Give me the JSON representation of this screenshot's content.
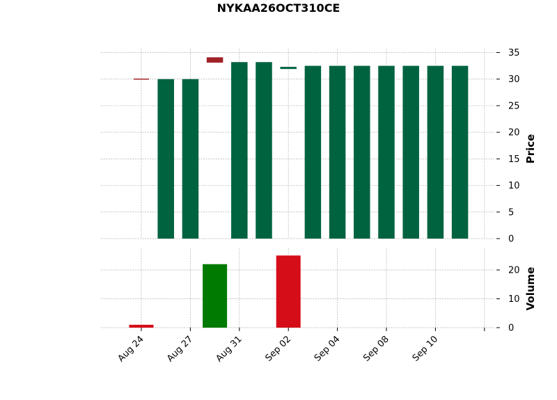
{
  "chart_data": {
    "type": "candlestick",
    "title": "NYKAA26OCT310CE",
    "x_tick_labels": [
      "Aug 24",
      "Aug 27",
      "Aug 31",
      "Sep 02",
      "Sep 04",
      "Sep 08",
      "Sep 10"
    ],
    "price_panel": {
      "ylabel": "Price",
      "ylim": [
        0,
        35
      ],
      "yticks": [
        0,
        5,
        10,
        15,
        20,
        25,
        30,
        35
      ],
      "grid": true,
      "candles": [
        {
          "open": 30,
          "close": 30,
          "color": "down"
        },
        {
          "open": 0,
          "close": 30,
          "color": "up"
        },
        {
          "open": 0,
          "close": 30,
          "color": "up"
        },
        {
          "open": 34.1,
          "close": 33.1,
          "color": "down"
        },
        {
          "open": 0,
          "close": 33.2,
          "color": "up"
        },
        {
          "open": 0,
          "close": 33.2,
          "color": "up"
        },
        {
          "open": 31.9,
          "close": 32.3,
          "color": "up"
        },
        {
          "open": 0,
          "close": 32.5,
          "color": "up"
        },
        {
          "open": 0,
          "close": 32.5,
          "color": "up"
        },
        {
          "open": 0,
          "close": 32.5,
          "color": "up"
        },
        {
          "open": 0,
          "close": 32.5,
          "color": "up"
        },
        {
          "open": 0,
          "close": 32.5,
          "color": "up"
        },
        {
          "open": 0,
          "close": 32.5,
          "color": "up"
        },
        {
          "open": 0,
          "close": 32.5,
          "color": "up"
        }
      ]
    },
    "volume_panel": {
      "ylabel": "Volume",
      "ylim": [
        0,
        27
      ],
      "yticks": [
        0,
        10,
        20
      ],
      "grid": true,
      "bars": [
        {
          "index": 0,
          "value": 1,
          "color": "down"
        },
        {
          "index": 3,
          "value": 22,
          "color": "up"
        },
        {
          "index": 6,
          "value": 25,
          "color": "down"
        }
      ]
    },
    "colors": {
      "candle_up": "#006340",
      "candle_down": "#a02128",
      "volume_up": "#007a00",
      "volume_down": "#d50d18"
    }
  }
}
